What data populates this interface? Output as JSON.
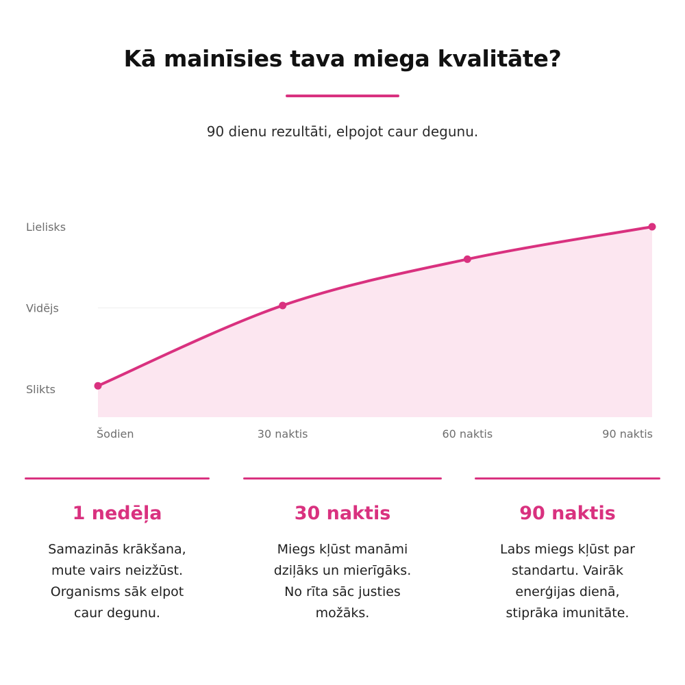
{
  "header": {
    "title": "Kā mainīsies tava miega kvalitāte?",
    "subtitle": "90 dienu rezultāti, elpojot caur degunu."
  },
  "colors": {
    "accent": "#d9317f",
    "area_fill": "#fce6f0",
    "gridline": "#eeeeee",
    "axis_text": "#6d6d6d"
  },
  "chart_data": {
    "type": "area",
    "title": "",
    "xlabel": "",
    "ylabel": "",
    "x_tick_labels": [
      "Šodien",
      "30 naktis",
      "60 naktis",
      "90 naktis"
    ],
    "y_tick_labels": [
      "Slikts",
      "Vidējs",
      "Lielisks"
    ],
    "x_range": [
      0,
      90
    ],
    "y_range": [
      0,
      2
    ],
    "grid": true,
    "legend": false,
    "series": [
      {
        "x": [
          0,
          30,
          60,
          90
        ],
        "y": [
          0.04,
          1.03,
          1.6,
          2.0
        ]
      }
    ]
  },
  "cards": [
    {
      "heading": "1 nedēļa",
      "lines": [
        "Samazinās krākšana,",
        "mute vairs neizžūst.",
        "Organisms sāk elpot",
        "caur degunu."
      ]
    },
    {
      "heading": "30 naktis",
      "lines": [
        "Miegs kļūst manāmi",
        "dziļāks un mierīgāks.",
        "No rīta sāc justies",
        "možāks."
      ]
    },
    {
      "heading": "90 naktis",
      "lines": [
        "Labs miegs kļūst par",
        "standartu. Vairāk",
        "enerģijas dienā,",
        "stiprāka imunitāte."
      ]
    }
  ]
}
